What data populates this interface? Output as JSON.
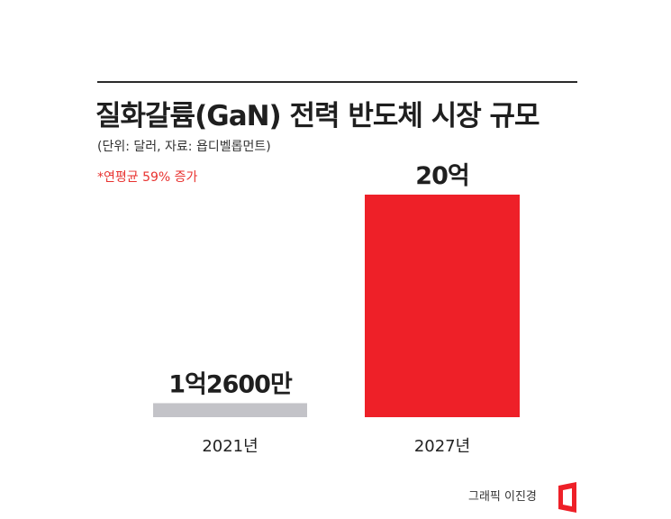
{
  "header": {
    "title": "질화갈륨(GaN) 전력 반도체 시장 규모",
    "unit_source": "(단위: 달러, 자료: 욥디벨롭먼트)",
    "note": "*연평균 59% 증가"
  },
  "footer": {
    "credit": "그래픽 이진경"
  },
  "chart_data": {
    "type": "bar",
    "title": "질화갈륨(GaN) 전력 반도체 시장 규모",
    "xlabel": "",
    "ylabel": "",
    "categories": [
      "2021년",
      "2027년"
    ],
    "values": [
      126000000,
      2000000000
    ],
    "data_labels": [
      "1억2600만",
      "20억"
    ],
    "ylim": [
      0,
      2000000000
    ],
    "grid": false,
    "legend": "none",
    "colors": [
      "#c3c3c8",
      "#ee2028"
    ]
  }
}
